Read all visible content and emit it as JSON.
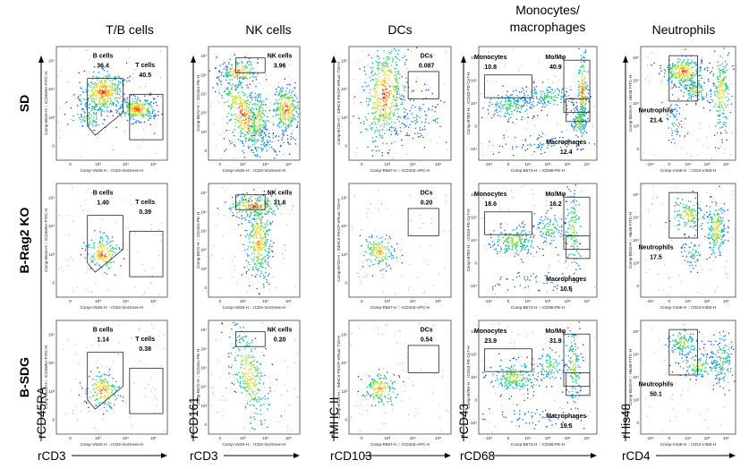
{
  "columns": [
    {
      "title": "T/B cells",
      "x_marker": "rCD3",
      "y_marker": "rCD45RA",
      "x_axis": "Comp-V525-H :: rCD3-VioGreen-H",
      "y_axis": "Comp-B525-H :: rCD45RA-FITC-H",
      "x_ticks": [
        "0",
        "10³",
        "10⁴",
        "10⁵"
      ],
      "y_ticks": [
        "10⁵",
        "10⁴",
        "10³",
        "0"
      ]
    },
    {
      "title": "NK cells",
      "x_marker": "rCD3",
      "y_marker": "rCD161",
      "x_axis": "Comp-V525-H :: rCD3-VioGreen-H",
      "y_axis": "Comp-B572-H :: rCD161-PE-H",
      "x_ticks": [
        "0",
        "10³",
        "10⁴",
        "10⁵"
      ],
      "y_ticks": [
        "10⁷",
        "10⁶",
        "10⁵",
        "10⁴",
        "10³",
        "0"
      ]
    },
    {
      "title": "DCs",
      "x_marker": "rCD103",
      "y_marker": "rMHC II",
      "x_axis": "Comp-R667-H :: rCD103-APC-H",
      "y_axis": "Comp-B725-H :: rMHCII-PerCP-eFluor 710-H",
      "x_ticks": [
        "0",
        "10³",
        "10⁴",
        "10⁵"
      ],
      "y_ticks": [
        "10⁵",
        "10⁴",
        "10³",
        "0"
      ]
    },
    {
      "title": "Monocytes/\nmacrophages",
      "x_marker": "rCD68",
      "y_marker": "rCD43",
      "x_axis": "Comp-B572-H :: rCD68-PE-H",
      "y_axis": "Comp-B780-H :: rCD43-PE-Cy7-H",
      "x_ticks": [
        "-10⁴",
        "0",
        "10⁴",
        "10⁵",
        "10⁶",
        "10⁷"
      ],
      "y_ticks": [
        "10⁶",
        "10⁵",
        "10⁴",
        "0",
        "-10⁴"
      ]
    },
    {
      "title": "Neutrophils",
      "x_marker": "rCD4",
      "y_marker": "rHis48",
      "x_axis": "Comp-V445-H :: rCD4-V450-H",
      "y_axis": "Comp-B525-H :: His48-FITC-H",
      "x_ticks": [
        "-10⁴",
        "0",
        "10⁴",
        "10⁵",
        "10⁶"
      ],
      "y_ticks": [
        "10⁶",
        "10⁵",
        "10⁴",
        "10³",
        "0"
      ]
    }
  ],
  "rows": [
    {
      "label": "SD"
    },
    {
      "label": "B-Rag2 KO"
    },
    {
      "label": "B-SDG"
    }
  ],
  "chart_data": [
    {
      "type": "scatter",
      "row": "SD",
      "column": "T/B cells",
      "gates": [
        {
          "name": "B cells",
          "percent": "36.4"
        },
        {
          "name": "T cells",
          "percent": "40.5"
        }
      ]
    },
    {
      "type": "scatter",
      "row": "SD",
      "column": "NK cells",
      "gates": [
        {
          "name": "NK cells",
          "percent": "3.96"
        }
      ]
    },
    {
      "type": "scatter",
      "row": "SD",
      "column": "DCs",
      "gates": [
        {
          "name": "DCs",
          "percent": "0.087"
        }
      ]
    },
    {
      "type": "scatter",
      "row": "SD",
      "column": "Monocytes/macrophages",
      "gates": [
        {
          "name": "Monocytes",
          "percent": "10.8"
        },
        {
          "name": "Mο/Mφ",
          "percent": "40.9"
        },
        {
          "name": "Macrophages",
          "percent": "12.4"
        }
      ]
    },
    {
      "type": "scatter",
      "row": "SD",
      "column": "Neutrophils",
      "gates": [
        {
          "name": "Neutrophils",
          "percent": "21.4"
        }
      ]
    },
    {
      "type": "scatter",
      "row": "B-Rag2 KO",
      "column": "T/B cells",
      "gates": [
        {
          "name": "B cells",
          "percent": "1.40"
        },
        {
          "name": "T cells",
          "percent": "0.39"
        }
      ]
    },
    {
      "type": "scatter",
      "row": "B-Rag2 KO",
      "column": "NK cells",
      "gates": [
        {
          "name": "NK cells",
          "percent": "31.6"
        }
      ]
    },
    {
      "type": "scatter",
      "row": "B-Rag2 KO",
      "column": "DCs",
      "gates": [
        {
          "name": "DCs",
          "percent": "0.20"
        }
      ]
    },
    {
      "type": "scatter",
      "row": "B-Rag2 KO",
      "column": "Monocytes/macrophages",
      "gates": [
        {
          "name": "Monocytes",
          "percent": "18.6"
        },
        {
          "name": "Mο/Mφ",
          "percent": "16.2"
        },
        {
          "name": "Macrophages",
          "percent": "10.6"
        }
      ]
    },
    {
      "type": "scatter",
      "row": "B-Rag2 KO",
      "column": "Neutrophils",
      "gates": [
        {
          "name": "Neutrophils",
          "percent": "17.5"
        }
      ]
    },
    {
      "type": "scatter",
      "row": "B-SDG",
      "column": "T/B cells",
      "gates": [
        {
          "name": "B cells",
          "percent": "1.14"
        },
        {
          "name": "T cells",
          "percent": "0.38"
        }
      ]
    },
    {
      "type": "scatter",
      "row": "B-SDG",
      "column": "NK cells",
      "gates": [
        {
          "name": "NK cells",
          "percent": "0.20"
        }
      ]
    },
    {
      "type": "scatter",
      "row": "B-SDG",
      "column": "DCs",
      "gates": [
        {
          "name": "DCs",
          "percent": "0.54"
        }
      ]
    },
    {
      "type": "scatter",
      "row": "B-SDG",
      "column": "Monocytes/macrophages",
      "gates": [
        {
          "name": "Monocytes",
          "percent": "23.9"
        },
        {
          "name": "Mο/Mφ",
          "percent": "31.9"
        },
        {
          "name": "Macrophages",
          "percent": "19.5"
        }
      ]
    },
    {
      "type": "scatter",
      "row": "B-SDG",
      "column": "Neutrophils",
      "gates": [
        {
          "name": "Neutrophils",
          "percent": "50.1"
        }
      ]
    }
  ]
}
